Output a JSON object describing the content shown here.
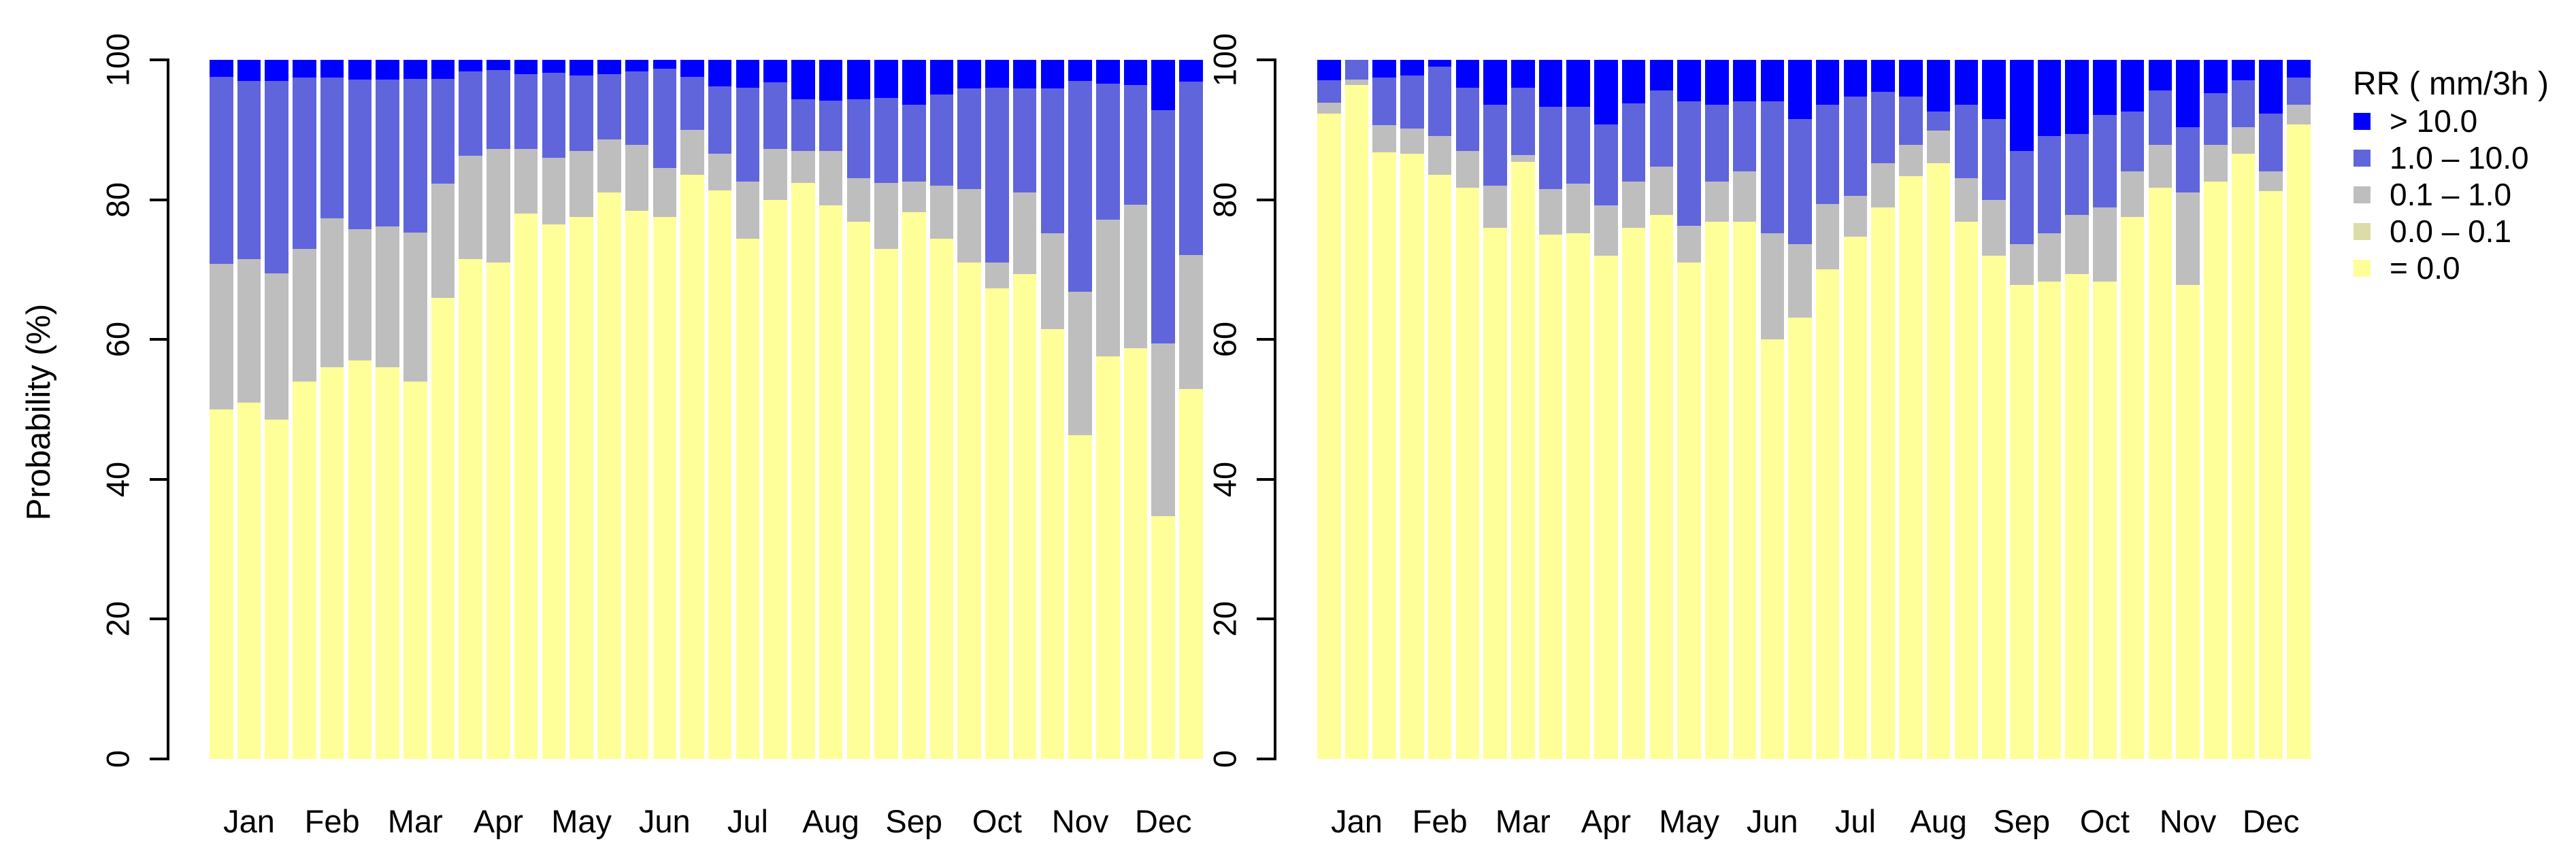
{
  "page": {
    "background": "#FFFFFF"
  },
  "y_axis": {
    "label": "Probability (%)",
    "tick_labels": [
      "0",
      "20",
      "40",
      "60",
      "80",
      "100"
    ]
  },
  "x_axis": {
    "months": [
      "Jan",
      "Feb",
      "Mar",
      "Apr",
      "May",
      "Jun",
      "Jul",
      "Aug",
      "Sep",
      "Oct",
      "Nov",
      "Dec"
    ]
  },
  "legend": {
    "title": "RR ( mm/3h )",
    "items": [
      {
        "key": "gt10",
        "label": "> 10.0",
        "color": "#0000FF"
      },
      {
        "key": "r1_10",
        "label": "1.0  –  10.0",
        "color": "#6065DB"
      },
      {
        "key": "r01_1",
        "label": "0.1  –  1.0",
        "color": "#BEBEBE"
      },
      {
        "key": "r00_01",
        "label": "0.0  –  0.1",
        "color": "#DCDCA8"
      },
      {
        "key": "eq0",
        "label": "= 0.0",
        "color": "#FFFF99"
      }
    ]
  },
  "chart_data": {
    "type": "bar",
    "stacked": true,
    "orientation": "vertical",
    "title": "",
    "xlabel": "",
    "ylabel": "Probability (%)",
    "ylim": [
      0,
      100
    ],
    "yticks": [
      0,
      20,
      40,
      60,
      80,
      100
    ],
    "grid": false,
    "legend_position": "right",
    "categories": [
      "Jan",
      "Feb",
      "Mar",
      "Apr",
      "May",
      "Jun",
      "Jul",
      "Aug",
      "Sep",
      "Oct",
      "Nov",
      "Dec"
    ],
    "bars_per_month": 3,
    "stack_order_bottom_to_top": [
      "eq0",
      "r00_01",
      "r01_1",
      "r1_10",
      "gt10"
    ],
    "panels": [
      {
        "name": "left",
        "series": [
          {
            "key": "eq0",
            "name": "= 0.0",
            "values": [
              50.0,
              51.0,
              48.5,
              54.0,
              56.0,
              57.0,
              56.0,
              54.0,
              66.0,
              71.5,
              71.0,
              78.0,
              76.5,
              77.5,
              81.0,
              78.4,
              77.5,
              83.6,
              81.3,
              74.4,
              80.0,
              82.4,
              79.2,
              76.8,
              73.0,
              78.2,
              74.4,
              71.0,
              67.3,
              69.4,
              61.5,
              46.3,
              57.6,
              58.8,
              34.7,
              52.9
            ]
          },
          {
            "key": "r00_01",
            "name": "0.0 – 0.1",
            "values": [
              0,
              0,
              0,
              0,
              0,
              0,
              0,
              0,
              0,
              0,
              0,
              0,
              0,
              0,
              0,
              0,
              0,
              0,
              0,
              0,
              0,
              0,
              0,
              0,
              0,
              0,
              0,
              0,
              0,
              0,
              0,
              0,
              0,
              0,
              0,
              0
            ]
          },
          {
            "key": "r01_1",
            "name": "0.1 – 1.0",
            "values": [
              20.8,
              20.5,
              21.0,
              19.0,
              21.3,
              18.8,
              20.2,
              21.3,
              16.3,
              14.8,
              16.3,
              9.3,
              9.5,
              9.5,
              7.6,
              9.4,
              7.0,
              6.4,
              5.3,
              8.2,
              7.3,
              4.6,
              7.8,
              6.3,
              9.4,
              4.4,
              7.6,
              10.5,
              3.7,
              11.6,
              13.7,
              20.5,
              19.5,
              20.5,
              24.7,
              19.2
            ]
          },
          {
            "key": "r1_10",
            "name": "1.0 – 10.0",
            "values": [
              26.8,
              25.5,
              27.5,
              24.5,
              20.2,
              21.4,
              21.0,
              22.0,
              15.0,
              12.0,
              11.2,
              10.7,
              12.2,
              10.8,
              9.4,
              10.5,
              14.2,
              7.6,
              9.6,
              13.4,
              9.5,
              7.4,
              7.2,
              11.3,
              12.2,
              11.0,
              13.0,
              14.4,
              25.0,
              14.9,
              20.7,
              30.2,
              19.5,
              17.1,
              33.4,
              24.8
            ]
          },
          {
            "key": "gt10",
            "name": "> 10.0",
            "values": [
              2.4,
              3.0,
              3.0,
              2.5,
              2.5,
              2.8,
              2.8,
              2.7,
              2.7,
              1.7,
              1.5,
              2.0,
              1.8,
              2.2,
              2.0,
              1.7,
              1.3,
              2.4,
              3.8,
              4.0,
              3.2,
              5.6,
              5.8,
              5.6,
              5.4,
              6.4,
              5.0,
              4.1,
              4.0,
              4.1,
              4.1,
              3.0,
              3.4,
              3.6,
              7.2,
              3.1
            ]
          }
        ]
      },
      {
        "name": "right",
        "series": [
          {
            "key": "eq0",
            "name": "= 0.0",
            "values": [
              92.3,
              96.4,
              86.8,
              86.6,
              83.6,
              81.7,
              76.0,
              85.4,
              75.0,
              75.2,
              72.0,
              76.0,
              77.8,
              71.0,
              76.8,
              76.8,
              60.0,
              63.1,
              70.0,
              74.7,
              78.9,
              83.4,
              85.2,
              76.8,
              72.0,
              67.8,
              68.3,
              69.4,
              68.3,
              77.5,
              81.7,
              67.8,
              82.6,
              86.6,
              81.2,
              90.8
            ]
          },
          {
            "key": "r00_01",
            "name": "0.0 – 0.1",
            "values": [
              0,
              0,
              0,
              0,
              0,
              0,
              0,
              0,
              0,
              0,
              0,
              0,
              0,
              0,
              0,
              0,
              0,
              0,
              0,
              0,
              0,
              0,
              0,
              0,
              0,
              0,
              0,
              0,
              0,
              0,
              0,
              0,
              0,
              0,
              0,
              0
            ]
          },
          {
            "key": "r01_1",
            "name": "0.1 – 1.0",
            "values": [
              1.6,
              0.8,
              3.9,
              3.6,
              5.5,
              5.3,
              6.0,
              1.0,
              6.5,
              7.1,
              7.2,
              6.6,
              6.9,
              5.3,
              5.8,
              7.2,
              15.2,
              10.5,
              9.4,
              5.8,
              6.3,
              4.4,
              4.7,
              6.3,
              8.0,
              5.8,
              6.9,
              8.4,
              10.6,
              6.5,
              6.1,
              13.2,
              5.2,
              3.8,
              2.8,
              2.8
            ]
          },
          {
            "key": "r1_10",
            "name": "1.0 – 10.0",
            "values": [
              3.2,
              2.8,
              6.8,
              7.6,
              9.9,
              9.0,
              11.6,
              9.6,
              11.8,
              11.0,
              11.6,
              11.2,
              10.9,
              17.8,
              11.0,
              10.1,
              18.9,
              17.9,
              14.2,
              14.2,
              10.2,
              6.9,
              2.7,
              10.5,
              11.5,
              13.4,
              13.9,
              11.6,
              13.2,
              8.6,
              7.8,
              9.4,
              7.4,
              6.7,
              8.3,
              3.9
            ]
          },
          {
            "key": "gt10",
            "name": "> 10.0",
            "values": [
              2.9,
              0.0,
              2.5,
              2.2,
              1.0,
              4.0,
              6.4,
              4.0,
              6.7,
              6.7,
              9.2,
              6.2,
              4.4,
              5.9,
              6.4,
              5.9,
              5.9,
              8.5,
              6.4,
              5.3,
              4.6,
              5.3,
              7.4,
              6.4,
              8.5,
              13.0,
              10.9,
              10.6,
              7.9,
              7.4,
              4.4,
              9.6,
              4.8,
              2.9,
              7.7,
              2.5
            ]
          }
        ]
      }
    ]
  }
}
